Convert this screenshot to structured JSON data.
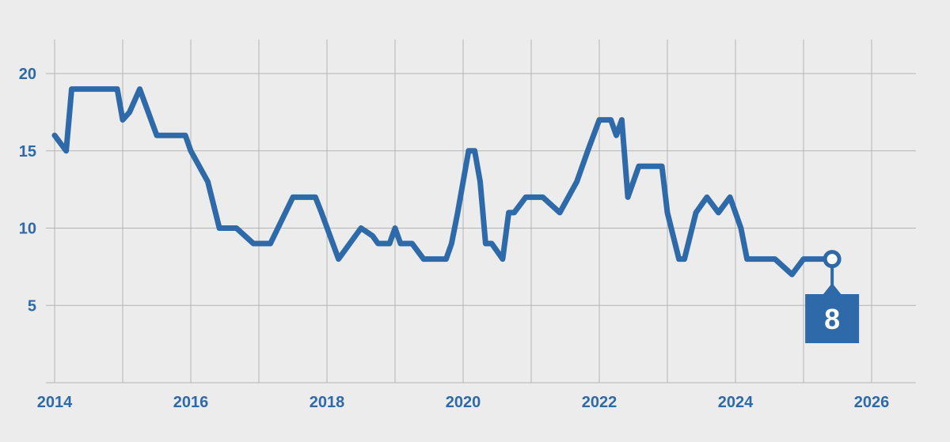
{
  "chart_data": {
    "type": "line",
    "title": "",
    "xlabel": "",
    "ylabel": "",
    "xlim": [
      2014,
      2026.5
    ],
    "ylim": [
      0,
      22
    ],
    "x_ticks": [
      2014,
      2016,
      2018,
      2020,
      2022,
      2024,
      2026
    ],
    "x_tick_labels": [
      "2014",
      "2016",
      "2018",
      "2020",
      "2022",
      "2024",
      "2026"
    ],
    "y_ticks": [
      5,
      10,
      15,
      20
    ],
    "y_tick_labels": [
      "5",
      "10",
      "15",
      "20"
    ],
    "grid": true,
    "legend": "none",
    "colors": {
      "line": "#2e6aa9",
      "axis_text": "#2e6aa9",
      "grid": "#b3b3b3",
      "background": "#ececec",
      "callout_text": "#ffffff"
    },
    "series": [
      {
        "x": [
          2014.0,
          2014.17,
          2014.25,
          2014.5,
          2014.75,
          2014.92,
          2015.0,
          2015.1,
          2015.25,
          2015.5,
          2015.75,
          2015.92,
          2016.0,
          2016.25,
          2016.42,
          2016.67,
          2016.92,
          2017.17,
          2017.5,
          2017.58,
          2017.83,
          2017.92,
          2018.17,
          2018.5,
          2018.67,
          2018.75,
          2018.92,
          2019.0,
          2019.08,
          2019.25,
          2019.42,
          2019.58,
          2019.75,
          2019.83,
          2019.92,
          2020.0,
          2020.08,
          2020.17,
          2020.25,
          2020.33,
          2020.42,
          2020.58,
          2020.67,
          2020.75,
          2020.92,
          2021.17,
          2021.42,
          2021.67,
          2021.83,
          2022.0,
          2022.17,
          2022.25,
          2022.33,
          2022.42,
          2022.5,
          2022.58,
          2022.75,
          2022.92,
          2023.0,
          2023.17,
          2023.25,
          2023.42,
          2023.58,
          2023.75,
          2023.92,
          2024.0,
          2024.08,
          2024.17,
          2024.33,
          2024.42,
          2024.58,
          2024.83,
          2025.0,
          2025.17,
          2025.42
        ],
        "values": [
          16,
          15,
          19,
          19,
          19,
          19,
          17,
          17.5,
          19,
          16,
          16,
          16,
          15,
          13,
          10,
          10,
          9,
          9,
          12,
          12,
          12,
          11,
          8,
          10,
          9.5,
          9,
          9,
          10,
          9,
          9,
          8,
          8,
          8,
          9,
          11,
          13,
          15,
          15,
          13,
          9,
          9,
          8,
          11,
          11,
          12,
          12,
          11,
          13,
          15,
          17,
          17,
          16,
          17,
          12,
          13,
          14,
          14,
          14,
          11,
          8,
          8,
          11,
          12,
          11,
          12,
          11,
          10,
          8,
          8,
          8,
          8,
          7,
          8,
          8,
          8
        ]
      }
    ],
    "callout": {
      "label": "8",
      "x": 2025.42,
      "y": 8
    }
  }
}
